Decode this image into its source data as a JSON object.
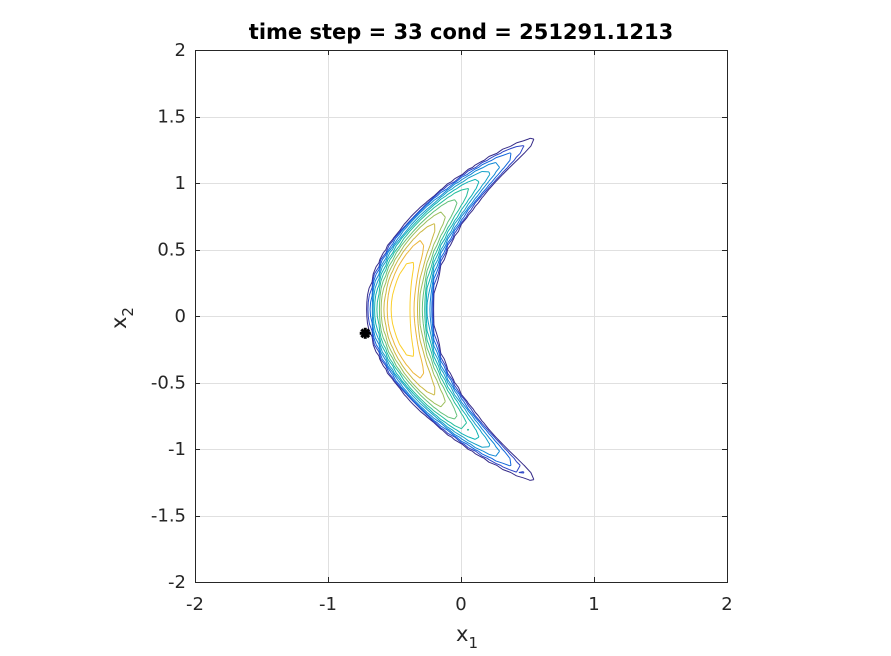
{
  "chart_data": {
    "type": "contour",
    "title": "time step = 33 cond = 251291.1213",
    "xlabel": {
      "base": "x",
      "subscript": "1"
    },
    "ylabel": {
      "base": "x",
      "subscript": "2"
    },
    "xlim": [
      -2,
      2
    ],
    "ylim": [
      -2,
      2
    ],
    "xticks": [
      -2,
      -1,
      0,
      1,
      2
    ],
    "yticks": [
      -2,
      -1.5,
      -1,
      -0.5,
      0,
      0.5,
      1,
      1.5,
      2
    ],
    "xtick_labels": [
      "-2",
      "-1",
      "0",
      "1",
      "2"
    ],
    "ytick_labels": [
      "-2",
      "-1.5",
      "-1",
      "-0.5",
      "0",
      "0.5",
      "1",
      "1.5",
      "2"
    ],
    "grid": true,
    "colormap": "parula",
    "level_colors": [
      "#352a87",
      "#2c43c6",
      "#1066dc",
      "#0f86d6",
      "#139fc8",
      "#0eb2b4",
      "#24bd9c",
      "#63c17a",
      "#9cbe5c",
      "#cbb842",
      "#edb63a",
      "#fbcf2a"
    ],
    "shape": {
      "x_center": -0.45,
      "y_center": 0.05
    },
    "marker": {
      "x": -0.72,
      "y": -0.13,
      "color": "#000000",
      "shape": "asterisk"
    }
  }
}
